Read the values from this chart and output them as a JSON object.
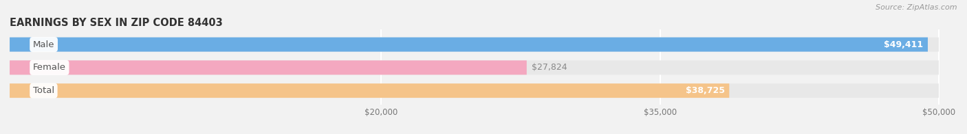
{
  "title": "EARNINGS BY SEX IN ZIP CODE 84403",
  "source": "Source: ZipAtlas.com",
  "categories": [
    "Male",
    "Female",
    "Total"
  ],
  "values": [
    49411,
    27824,
    38725
  ],
  "bar_colors": [
    "#6aade4",
    "#f4a8c0",
    "#f5c48a"
  ],
  "label_positions": [
    "inside_right",
    "outside_right",
    "inside_right"
  ],
  "xlim_min": 0,
  "xlim_max": 50000,
  "xticks": [
    20000,
    35000,
    50000
  ],
  "xtick_labels": [
    "$20,000",
    "$35,000",
    "$50,000"
  ],
  "bar_height": 0.62,
  "figsize": [
    14.06,
    1.96
  ],
  "dpi": 100,
  "bg_color": "#f2f2f2",
  "bar_bg_color": "#e8e8e8",
  "value_labels": [
    "$49,411",
    "$27,824",
    "$38,725"
  ],
  "cat_label_color": "#555555",
  "cat_bg_color": "white"
}
